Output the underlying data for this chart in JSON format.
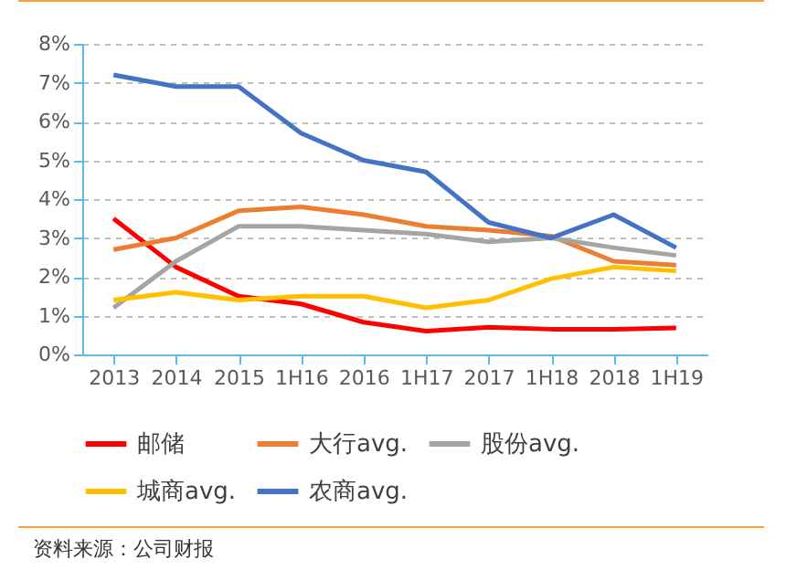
{
  "chart_data": {
    "type": "line",
    "categories": [
      "2013",
      "2014",
      "2015",
      "1H16",
      "2016",
      "1H17",
      "2017",
      "1H18",
      "2018",
      "1H19"
    ],
    "series": [
      {
        "name": "邮储",
        "color": "#ff0000",
        "values": [
          3.5,
          2.25,
          1.5,
          1.3,
          0.83,
          0.6,
          0.7,
          0.65,
          0.65,
          0.68
        ]
      },
      {
        "name": "大行avg.",
        "color": "#ed7d31",
        "values": [
          2.7,
          3.0,
          3.7,
          3.8,
          3.6,
          3.3,
          3.2,
          3.05,
          2.4,
          2.3
        ]
      },
      {
        "name": "股份avg.",
        "color": "#a5a5a5",
        "values": [
          1.2,
          2.4,
          3.3,
          3.3,
          3.2,
          3.1,
          2.9,
          3.0,
          2.75,
          2.55
        ]
      },
      {
        "name": "城商avg.",
        "color": "#ffc000",
        "values": [
          1.4,
          1.6,
          1.4,
          1.5,
          1.5,
          1.2,
          1.4,
          1.95,
          2.25,
          2.15
        ]
      },
      {
        "name": "农商avg.",
        "color": "#4472c4",
        "values": [
          7.2,
          6.9,
          6.9,
          5.7,
          5.0,
          4.7,
          3.4,
          3.0,
          3.6,
          2.75
        ]
      }
    ],
    "ylim": [
      0,
      8
    ],
    "yticks": [
      {
        "value": 0,
        "label": "0%"
      },
      {
        "value": 1,
        "label": "1%"
      },
      {
        "value": 2,
        "label": "2%"
      },
      {
        "value": 3,
        "label": "3%"
      },
      {
        "value": 4,
        "label": "4%"
      },
      {
        "value": 5,
        "label": "5%"
      },
      {
        "value": 6,
        "label": "6%"
      },
      {
        "value": 7,
        "label": "7%"
      },
      {
        "value": 8,
        "label": "8%"
      }
    ],
    "grid": "y",
    "legend": "bottom",
    "line_style": "solid",
    "annotations": [
      "资料来源：公司财报"
    ]
  }
}
